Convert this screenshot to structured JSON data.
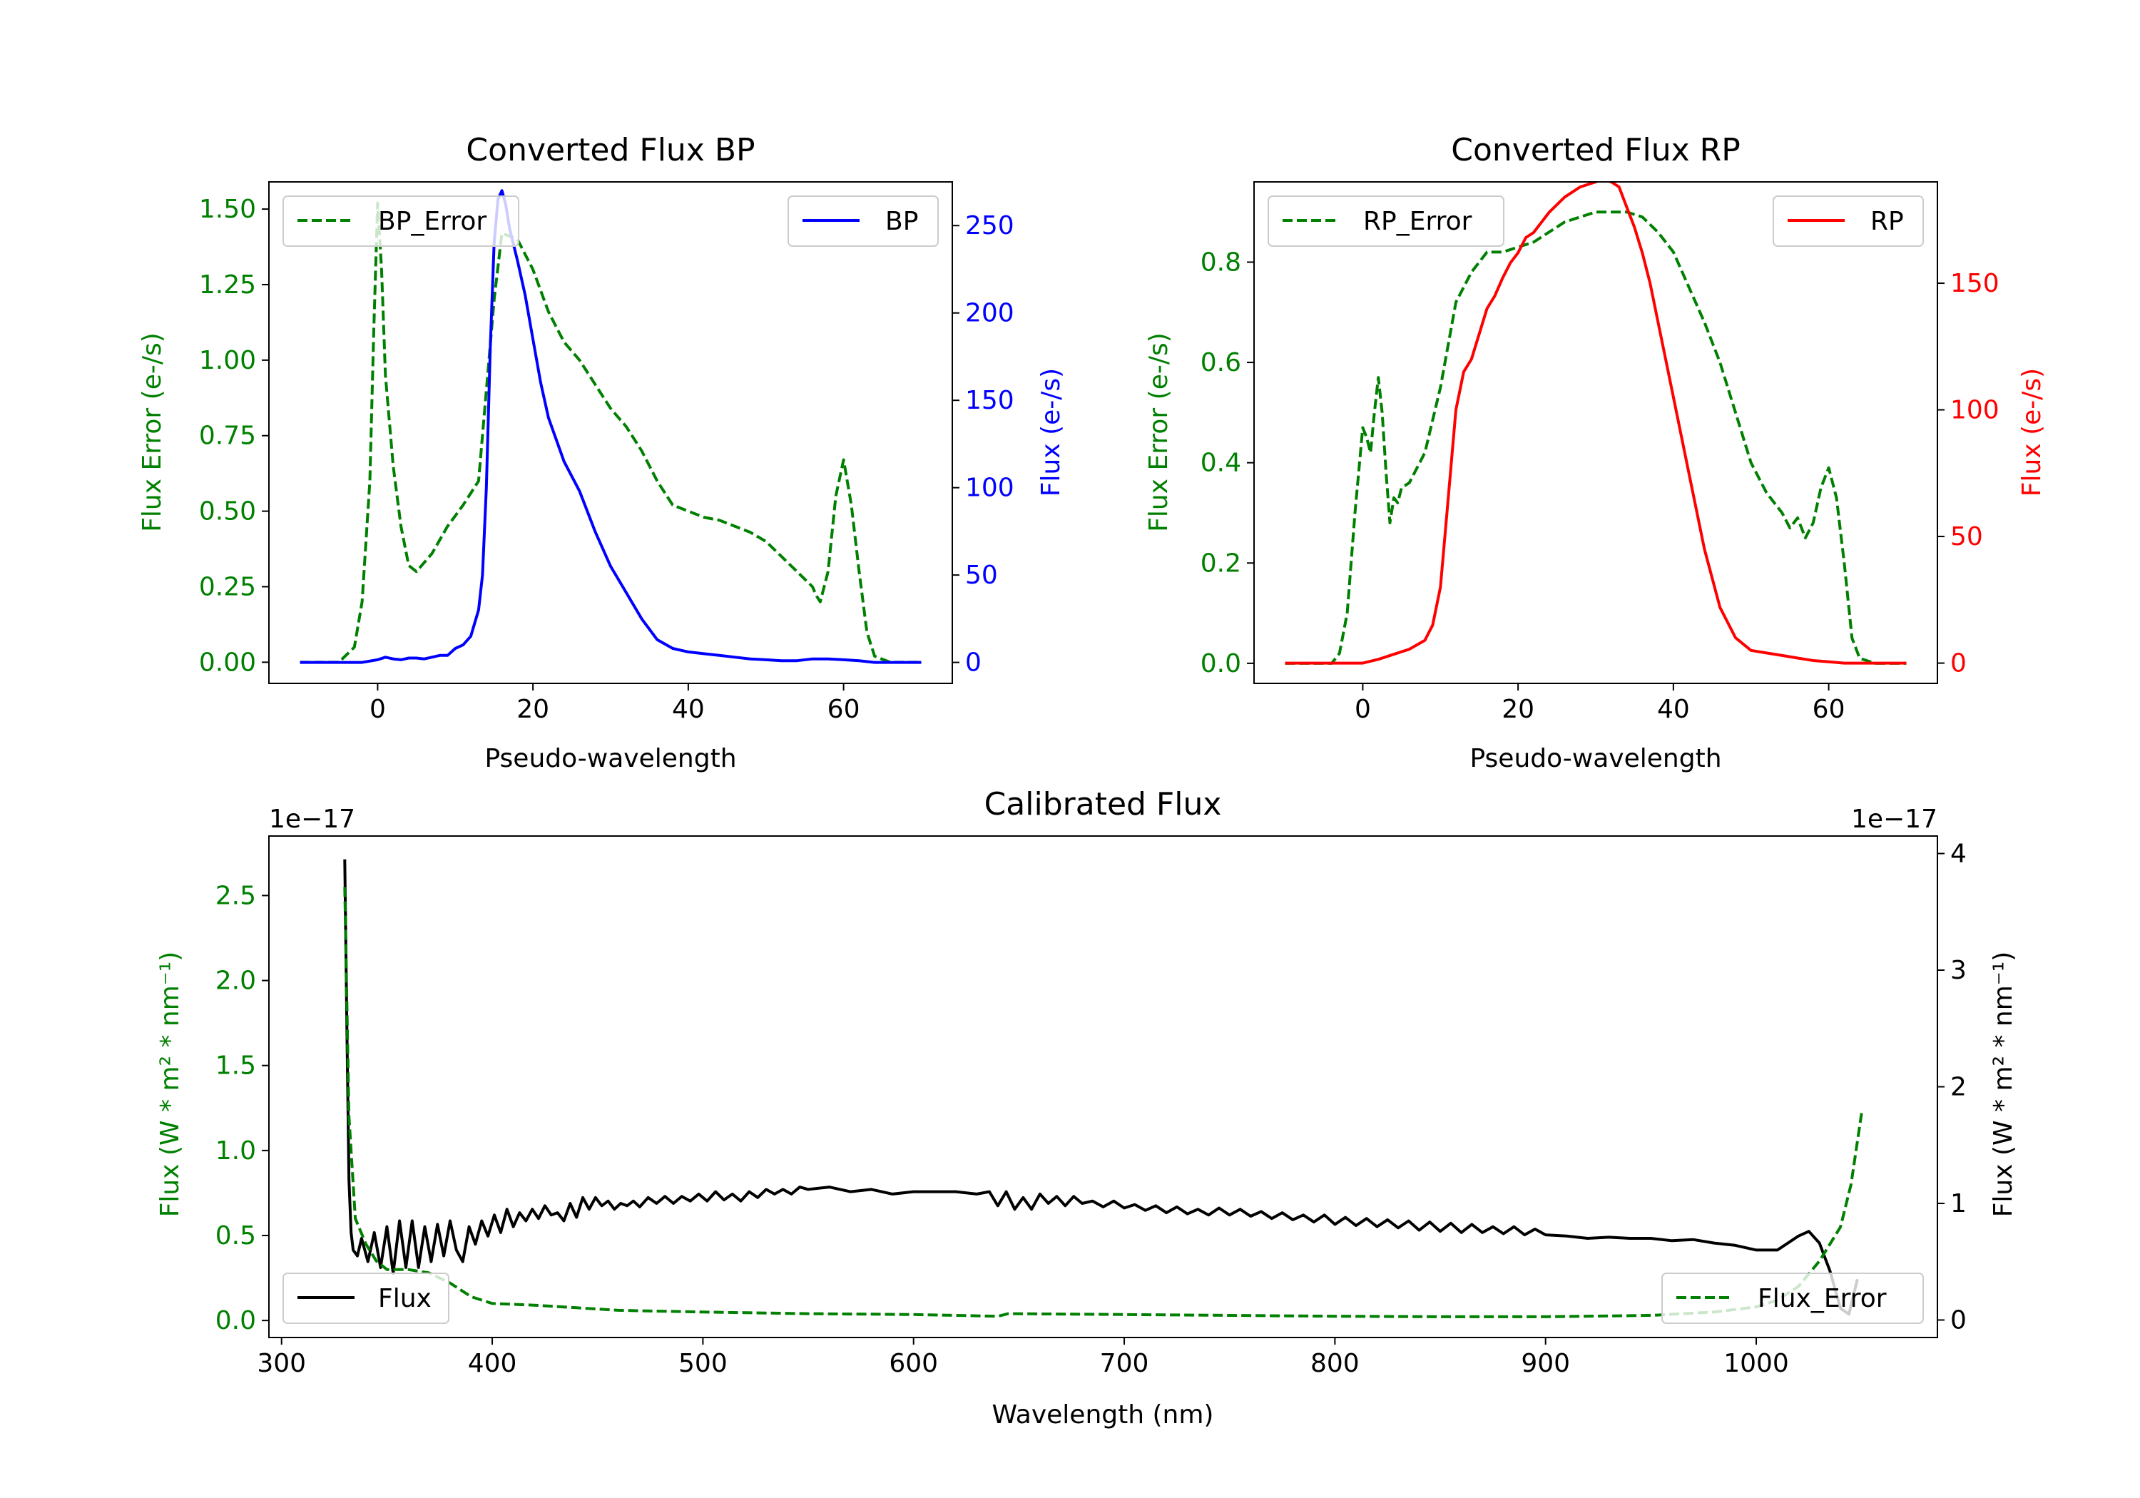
{
  "colors": {
    "error": "#008000",
    "bp": "#0000ff",
    "rp": "#ff0000",
    "flux": "#000000",
    "axis": "#000000"
  },
  "chart_data": [
    {
      "id": "bp",
      "type": "line",
      "title": "Converted Flux BP",
      "xlabel": "Pseudo-wavelength",
      "ylabel_left": "Flux Error (e-/s)",
      "ylabel_right": "Flux (e-/s)",
      "xlim": [
        -14,
        74
      ],
      "ylim_left": [
        -0.07,
        1.59
      ],
      "ylim_right": [
        -12,
        275
      ],
      "xticks": [
        "0",
        "20",
        "40",
        "60"
      ],
      "xtick_values": [
        0,
        20,
        40,
        60
      ],
      "yticks_left": [
        "0.00",
        "0.25",
        "0.50",
        "0.75",
        "1.00",
        "1.25",
        "1.50"
      ],
      "ytick_values_left": [
        0,
        0.25,
        0.5,
        0.75,
        1.0,
        1.25,
        1.5
      ],
      "yticks_right": [
        "0",
        "50",
        "100",
        "150",
        "200",
        "250"
      ],
      "ytick_values_right": [
        0,
        50,
        100,
        150,
        200,
        250
      ],
      "legend_left": "BP_Error",
      "legend_right": "BP",
      "series": [
        {
          "name": "BP_Error",
          "axis": "left",
          "style": "dashed",
          "x": [
            -10,
            -5,
            -3,
            -2,
            -1,
            -0.5,
            0,
            0.5,
            1,
            2,
            3,
            4,
            5,
            7,
            9,
            11,
            13,
            14,
            15,
            16,
            18,
            20,
            22,
            24,
            26,
            28,
            30,
            32,
            34,
            36,
            38,
            40,
            42,
            44,
            46,
            48,
            50,
            52,
            54,
            56,
            56.5,
            57,
            58,
            59,
            60,
            61,
            62,
            63,
            64,
            66,
            70
          ],
          "values": [
            0,
            0,
            0.05,
            0.2,
            0.6,
            1.1,
            1.52,
            1.3,
            0.95,
            0.65,
            0.45,
            0.32,
            0.3,
            0.36,
            0.45,
            0.52,
            0.6,
            0.9,
            1.2,
            1.42,
            1.4,
            1.3,
            1.16,
            1.06,
            1.0,
            0.92,
            0.84,
            0.78,
            0.7,
            0.6,
            0.52,
            0.5,
            0.48,
            0.47,
            0.45,
            0.43,
            0.4,
            0.35,
            0.3,
            0.25,
            0.22,
            0.2,
            0.3,
            0.55,
            0.67,
            0.52,
            0.3,
            0.1,
            0.02,
            0,
            0
          ]
        },
        {
          "name": "BP",
          "axis": "right",
          "style": "solid",
          "x": [
            -10,
            -2,
            0,
            1,
            2,
            3,
            4,
            5,
            6,
            7,
            8,
            9,
            10,
            11,
            12,
            13,
            13.5,
            14,
            14.5,
            15,
            15.5,
            16,
            16.5,
            17,
            18,
            19,
            20,
            21,
            22,
            24,
            26,
            28,
            30,
            32,
            34,
            36,
            38,
            40,
            42,
            44,
            46,
            48,
            50,
            52,
            54,
            56,
            58,
            60,
            62,
            64,
            66,
            70
          ],
          "values": [
            0,
            0,
            1.5,
            3,
            2,
            1.5,
            2.5,
            2.5,
            2,
            3,
            4,
            4,
            8,
            10,
            15,
            30,
            50,
            100,
            180,
            240,
            265,
            270,
            262,
            248,
            230,
            210,
            185,
            160,
            140,
            115,
            98,
            75,
            55,
            40,
            25,
            13,
            8,
            6,
            5,
            4,
            3,
            2,
            1.5,
            1,
            1,
            2,
            2,
            1.5,
            1,
            0,
            0,
            0
          ]
        }
      ]
    },
    {
      "id": "rp",
      "type": "line",
      "title": "Converted Flux RP",
      "xlabel": "Pseudo-wavelength",
      "ylabel_left": "Flux Error (e-/s)",
      "ylabel_right": "Flux (e-/s)",
      "xlim": [
        -14,
        74
      ],
      "ylim_left": [
        -0.04,
        0.96
      ],
      "ylim_right": [
        -8,
        190
      ],
      "xticks": [
        "0",
        "20",
        "40",
        "60"
      ],
      "xtick_values": [
        0,
        20,
        40,
        60
      ],
      "yticks_left": [
        "0.0",
        "0.2",
        "0.4",
        "0.6",
        "0.8"
      ],
      "ytick_values_left": [
        0,
        0.2,
        0.4,
        0.6,
        0.8
      ],
      "yticks_right": [
        "0",
        "50",
        "100",
        "150"
      ],
      "ytick_values_right": [
        0,
        50,
        100,
        150
      ],
      "legend_left": "RP_Error",
      "legend_right": "RP",
      "series": [
        {
          "name": "RP_Error",
          "axis": "left",
          "style": "dashed",
          "x": [
            -10,
            -4,
            -3,
            -2,
            -1,
            0,
            0.5,
            1,
            1.5,
            2,
            2.5,
            3,
            3.5,
            4,
            4.5,
            5,
            6,
            8,
            10,
            12,
            14,
            16,
            18,
            20,
            22,
            24,
            26,
            28,
            30,
            32,
            34,
            36,
            38,
            40,
            42,
            44,
            46,
            48,
            50,
            52,
            54,
            55,
            56,
            57,
            58,
            59,
            60,
            61,
            62,
            63,
            64,
            66,
            70
          ],
          "values": [
            0,
            0,
            0.02,
            0.1,
            0.3,
            0.47,
            0.45,
            0.42,
            0.5,
            0.57,
            0.5,
            0.38,
            0.28,
            0.33,
            0.32,
            0.35,
            0.36,
            0.42,
            0.55,
            0.72,
            0.78,
            0.82,
            0.82,
            0.83,
            0.84,
            0.86,
            0.88,
            0.89,
            0.9,
            0.9,
            0.9,
            0.89,
            0.86,
            0.82,
            0.75,
            0.68,
            0.6,
            0.5,
            0.4,
            0.34,
            0.3,
            0.27,
            0.29,
            0.25,
            0.28,
            0.35,
            0.39,
            0.33,
            0.2,
            0.05,
            0.01,
            0,
            0
          ]
        },
        {
          "name": "RP",
          "axis": "right",
          "style": "solid",
          "x": [
            -10,
            -2,
            0,
            2,
            4,
            6,
            8,
            9,
            10,
            11,
            12,
            13,
            14,
            15,
            16,
            17,
            18,
            19,
            20,
            21,
            22,
            24,
            26,
            28,
            30,
            31,
            32,
            33,
            34,
            35,
            36,
            37,
            38,
            39,
            40,
            42,
            44,
            46,
            48,
            50,
            52,
            54,
            56,
            58,
            60,
            62,
            64,
            66,
            70
          ],
          "values": [
            0,
            0,
            0,
            1.5,
            3.5,
            5.5,
            9,
            15,
            30,
            65,
            100,
            115,
            120,
            130,
            140,
            145,
            152,
            158,
            162,
            168,
            170,
            178,
            184,
            188,
            190,
            191,
            190,
            188,
            180,
            172,
            162,
            150,
            135,
            120,
            105,
            75,
            45,
            22,
            10,
            5,
            4,
            3,
            2,
            1,
            0.5,
            0,
            0,
            0,
            0
          ]
        }
      ]
    },
    {
      "id": "cal",
      "type": "line",
      "title": "Calibrated Flux",
      "xlabel": "Wavelength (nm)",
      "ylabel_left": "Flux (W * m² * nm⁻¹)",
      "ylabel_right": "Flux (W * m² * nm⁻¹)",
      "offset_left": "1e−17",
      "offset_right": "1e−17",
      "xlim": [
        294,
        1086
      ],
      "ylim_left": [
        -0.1,
        2.85
      ],
      "ylim_right": [
        -0.15,
        4.15
      ],
      "xticks": [
        "300",
        "400",
        "500",
        "600",
        "700",
        "800",
        "900",
        "1000"
      ],
      "xtick_values": [
        300,
        400,
        500,
        600,
        700,
        800,
        900,
        1000
      ],
      "yticks_left": [
        "0.0",
        "0.5",
        "1.0",
        "1.5",
        "2.0",
        "2.5"
      ],
      "ytick_values_left": [
        0,
        0.5,
        1.0,
        1.5,
        2.0,
        2.5
      ],
      "yticks_right": [
        "0",
        "1",
        "2",
        "3",
        "4"
      ],
      "ytick_values_right": [
        0,
        1,
        2,
        3,
        4
      ],
      "legend_left": "Flux",
      "legend_right": "Flux_Error",
      "series": [
        {
          "name": "Flux",
          "axis": "right",
          "style": "solid",
          "x": [
            330,
            331,
            332,
            333,
            334,
            336,
            338,
            341,
            344,
            347,
            350,
            353,
            356,
            359,
            362,
            365,
            368,
            371,
            374,
            377,
            380,
            383,
            386,
            389,
            392,
            395,
            398,
            401,
            404,
            407,
            410,
            413,
            416,
            419,
            422,
            425,
            428,
            431,
            434,
            437,
            440,
            443,
            446,
            449,
            452,
            455,
            458,
            461,
            464,
            467,
            470,
            474,
            478,
            482,
            486,
            490,
            494,
            498,
            502,
            506,
            510,
            514,
            518,
            522,
            526,
            530,
            534,
            538,
            542,
            546,
            550,
            560,
            570,
            580,
            590,
            600,
            610,
            620,
            630,
            636,
            640,
            644,
            648,
            652,
            656,
            660,
            664,
            668,
            672,
            676,
            680,
            685,
            690,
            695,
            700,
            705,
            710,
            715,
            720,
            725,
            730,
            735,
            740,
            745,
            750,
            755,
            760,
            765,
            770,
            775,
            780,
            785,
            790,
            795,
            800,
            805,
            810,
            815,
            820,
            825,
            830,
            835,
            840,
            845,
            850,
            855,
            860,
            865,
            870,
            875,
            880,
            885,
            890,
            895,
            900,
            910,
            920,
            930,
            940,
            950,
            960,
            970,
            980,
            990,
            1000,
            1010,
            1020,
            1025,
            1030,
            1035,
            1040,
            1044,
            1048
          ],
          "values": [
            3.95,
            2.5,
            1.2,
            0.75,
            0.6,
            0.55,
            0.7,
            0.5,
            0.75,
            0.45,
            0.8,
            0.4,
            0.85,
            0.45,
            0.85,
            0.45,
            0.8,
            0.5,
            0.82,
            0.55,
            0.85,
            0.6,
            0.5,
            0.8,
            0.65,
            0.85,
            0.72,
            0.9,
            0.75,
            0.95,
            0.8,
            0.92,
            0.85,
            0.95,
            0.87,
            0.98,
            0.9,
            0.92,
            0.85,
            1.0,
            0.88,
            1.05,
            0.95,
            1.05,
            0.98,
            1.02,
            0.95,
            1.0,
            0.98,
            1.02,
            0.97,
            1.05,
            1.0,
            1.06,
            1.0,
            1.06,
            1.02,
            1.08,
            1.02,
            1.1,
            1.03,
            1.08,
            1.02,
            1.1,
            1.05,
            1.12,
            1.08,
            1.12,
            1.08,
            1.14,
            1.12,
            1.14,
            1.1,
            1.12,
            1.08,
            1.1,
            1.1,
            1.1,
            1.08,
            1.1,
            0.98,
            1.1,
            0.95,
            1.05,
            0.95,
            1.08,
            1.0,
            1.06,
            0.98,
            1.06,
            1.0,
            1.02,
            0.97,
            1.02,
            0.96,
            0.99,
            0.94,
            0.98,
            0.92,
            0.97,
            0.91,
            0.95,
            0.9,
            0.96,
            0.9,
            0.95,
            0.89,
            0.93,
            0.87,
            0.92,
            0.86,
            0.9,
            0.84,
            0.9,
            0.82,
            0.88,
            0.81,
            0.87,
            0.8,
            0.86,
            0.79,
            0.85,
            0.77,
            0.84,
            0.76,
            0.83,
            0.75,
            0.82,
            0.75,
            0.8,
            0.74,
            0.8,
            0.73,
            0.78,
            0.73,
            0.72,
            0.7,
            0.71,
            0.7,
            0.7,
            0.68,
            0.69,
            0.66,
            0.64,
            0.6,
            0.6,
            0.72,
            0.76,
            0.66,
            0.42,
            0.1,
            0.05,
            0.35
          ]
        },
        {
          "name": "Flux_Error",
          "axis": "left",
          "style": "dashed",
          "x": [
            330,
            332,
            335,
            340,
            345,
            350,
            360,
            370,
            380,
            390,
            400,
            420,
            440,
            460,
            500,
            550,
            600,
            640,
            645,
            700,
            750,
            800,
            850,
            900,
            950,
            980,
            1000,
            1010,
            1020,
            1030,
            1035,
            1040,
            1045,
            1050
          ],
          "values": [
            2.55,
            1.2,
            0.6,
            0.45,
            0.35,
            0.3,
            0.3,
            0.28,
            0.22,
            0.14,
            0.1,
            0.09,
            0.075,
            0.06,
            0.05,
            0.04,
            0.035,
            0.025,
            0.04,
            0.035,
            0.03,
            0.025,
            0.022,
            0.022,
            0.03,
            0.05,
            0.08,
            0.12,
            0.2,
            0.35,
            0.45,
            0.55,
            0.8,
            1.22
          ]
        }
      ]
    }
  ]
}
